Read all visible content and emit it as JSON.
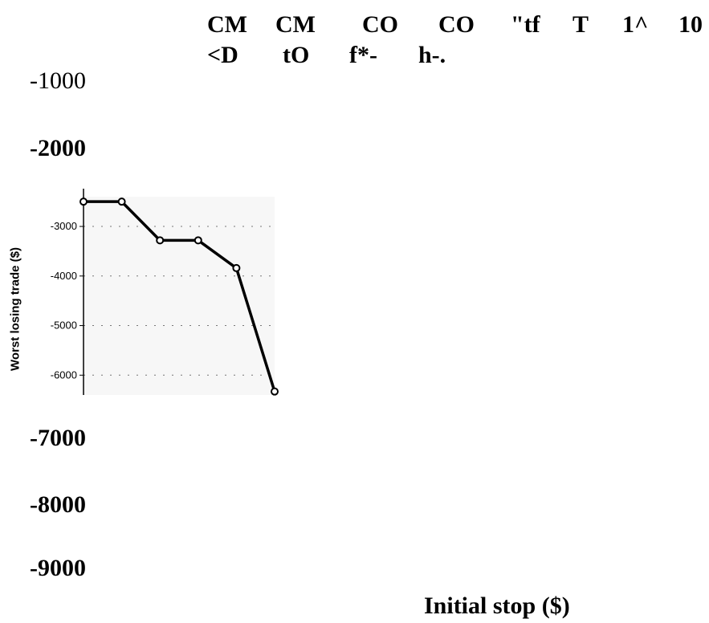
{
  "chart_data": {
    "type": "line",
    "title": "",
    "xlabel": "Initial stop ($)",
    "ylabel": "Worst losing trade ($)",
    "ylim": [
      -6400,
      -2400
    ],
    "y_ticks": [
      "-3000",
      "-4000",
      "-5000",
      "-6000"
    ],
    "grid": "horizontal dotted",
    "legend": "none",
    "series": [
      {
        "values": [
          -2500,
          -2500,
          -3280,
          -3280,
          -3840,
          -6330
        ]
      }
    ],
    "line_color": "#000000",
    "background_color": "#f7f7f7"
  },
  "ocr_artifacts": {
    "top_row_1": [
      "CM",
      "CM",
      "CO",
      "CO",
      "\"tf",
      "T",
      "1^",
      "10"
    ],
    "top_row_2": [
      "<D",
      "tO",
      "f*-",
      "h-."
    ],
    "axis_numbers": [
      "-1000",
      "-2000",
      "-7000",
      "-8000",
      "-9000"
    ]
  }
}
